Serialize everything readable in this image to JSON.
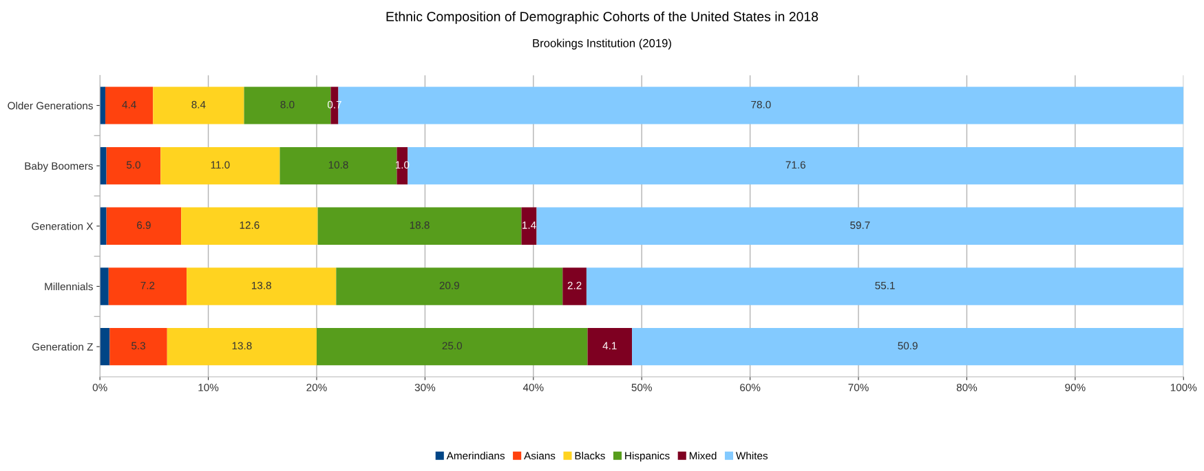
{
  "chart_data": {
    "type": "bar",
    "orientation": "horizontal",
    "stacked": true,
    "title": "Ethnic Composition of Demographic Cohorts of the United States in 2018",
    "subtitle": "Brookings Institution (2019)",
    "categories": [
      "Older Generations",
      "Baby Boomers",
      "Generation X",
      "Millennials",
      "Generation Z"
    ],
    "series": [
      {
        "name": "Amerindians",
        "color": "#004586",
        "values": [
          0.5,
          0.6,
          0.6,
          0.8,
          0.9
        ]
      },
      {
        "name": "Asians",
        "color": "#ff420e",
        "values": [
          4.4,
          5.0,
          6.9,
          7.2,
          5.3
        ],
        "value_labels": [
          "4.4",
          "5.0",
          "6.9",
          "7.2",
          "5.3"
        ]
      },
      {
        "name": "Blacks",
        "color": "#ffd320",
        "values": [
          8.4,
          11.0,
          12.6,
          13.8,
          13.8
        ],
        "value_labels": [
          "8.4",
          "11.0",
          "12.6",
          "13.8",
          "13.8"
        ]
      },
      {
        "name": "Hispanics",
        "color": "#579d1c",
        "values": [
          8.0,
          10.8,
          18.8,
          20.9,
          25.0
        ],
        "value_labels": [
          "8.0",
          "10.8",
          "18.8",
          "20.9",
          "25.0"
        ]
      },
      {
        "name": "Mixed",
        "color": "#7e0021",
        "values": [
          0.7,
          1.0,
          1.4,
          2.2,
          4.1
        ],
        "value_labels": [
          "0.7",
          "1.0",
          "1.4",
          "2.2",
          "4.1"
        ]
      },
      {
        "name": "Whites",
        "color": "#83caff",
        "values": [
          78.0,
          71.6,
          59.7,
          55.1,
          50.9
        ],
        "value_labels": [
          "78.0",
          "71.6",
          "59.7",
          "55.1",
          "50.9"
        ]
      }
    ],
    "xlim": [
      0,
      100
    ],
    "xticks": [
      {
        "value": 0,
        "label": "0%"
      },
      {
        "value": 10,
        "label": "10%"
      },
      {
        "value": 20,
        "label": "20%"
      },
      {
        "value": 30,
        "label": "30%"
      },
      {
        "value": 40,
        "label": "40%"
      },
      {
        "value": 50,
        "label": "50%"
      },
      {
        "value": 60,
        "label": "60%"
      },
      {
        "value": 70,
        "label": "70%"
      },
      {
        "value": 80,
        "label": "80%"
      },
      {
        "value": 90,
        "label": "90%"
      },
      {
        "value": 100,
        "label": "100%"
      }
    ],
    "grid": "x",
    "legend": "bottom"
  }
}
